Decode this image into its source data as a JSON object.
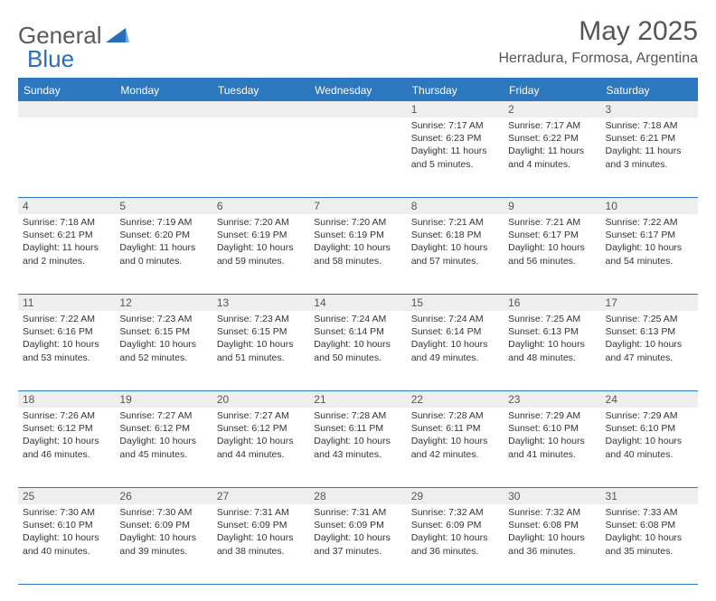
{
  "brand": {
    "part1": "General",
    "part2": "Blue"
  },
  "title": "May 2025",
  "location": "Herradura, Formosa, Argentina",
  "colors": {
    "accent": "#2c77bd",
    "daynum_bg": "#eeeeee",
    "text": "#333333",
    "header_text": "#555555"
  },
  "days_of_week": [
    "Sunday",
    "Monday",
    "Tuesday",
    "Wednesday",
    "Thursday",
    "Friday",
    "Saturday"
  ],
  "weeks": [
    [
      null,
      null,
      null,
      null,
      {
        "n": "1",
        "sr": "7:17 AM",
        "ss": "6:23 PM",
        "dl": "11 hours and 5 minutes."
      },
      {
        "n": "2",
        "sr": "7:17 AM",
        "ss": "6:22 PM",
        "dl": "11 hours and 4 minutes."
      },
      {
        "n": "3",
        "sr": "7:18 AM",
        "ss": "6:21 PM",
        "dl": "11 hours and 3 minutes."
      }
    ],
    [
      {
        "n": "4",
        "sr": "7:18 AM",
        "ss": "6:21 PM",
        "dl": "11 hours and 2 minutes."
      },
      {
        "n": "5",
        "sr": "7:19 AM",
        "ss": "6:20 PM",
        "dl": "11 hours and 0 minutes."
      },
      {
        "n": "6",
        "sr": "7:20 AM",
        "ss": "6:19 PM",
        "dl": "10 hours and 59 minutes."
      },
      {
        "n": "7",
        "sr": "7:20 AM",
        "ss": "6:19 PM",
        "dl": "10 hours and 58 minutes."
      },
      {
        "n": "8",
        "sr": "7:21 AM",
        "ss": "6:18 PM",
        "dl": "10 hours and 57 minutes."
      },
      {
        "n": "9",
        "sr": "7:21 AM",
        "ss": "6:17 PM",
        "dl": "10 hours and 56 minutes."
      },
      {
        "n": "10",
        "sr": "7:22 AM",
        "ss": "6:17 PM",
        "dl": "10 hours and 54 minutes."
      }
    ],
    [
      {
        "n": "11",
        "sr": "7:22 AM",
        "ss": "6:16 PM",
        "dl": "10 hours and 53 minutes."
      },
      {
        "n": "12",
        "sr": "7:23 AM",
        "ss": "6:15 PM",
        "dl": "10 hours and 52 minutes."
      },
      {
        "n": "13",
        "sr": "7:23 AM",
        "ss": "6:15 PM",
        "dl": "10 hours and 51 minutes."
      },
      {
        "n": "14",
        "sr": "7:24 AM",
        "ss": "6:14 PM",
        "dl": "10 hours and 50 minutes."
      },
      {
        "n": "15",
        "sr": "7:24 AM",
        "ss": "6:14 PM",
        "dl": "10 hours and 49 minutes."
      },
      {
        "n": "16",
        "sr": "7:25 AM",
        "ss": "6:13 PM",
        "dl": "10 hours and 48 minutes."
      },
      {
        "n": "17",
        "sr": "7:25 AM",
        "ss": "6:13 PM",
        "dl": "10 hours and 47 minutes."
      }
    ],
    [
      {
        "n": "18",
        "sr": "7:26 AM",
        "ss": "6:12 PM",
        "dl": "10 hours and 46 minutes."
      },
      {
        "n": "19",
        "sr": "7:27 AM",
        "ss": "6:12 PM",
        "dl": "10 hours and 45 minutes."
      },
      {
        "n": "20",
        "sr": "7:27 AM",
        "ss": "6:12 PM",
        "dl": "10 hours and 44 minutes."
      },
      {
        "n": "21",
        "sr": "7:28 AM",
        "ss": "6:11 PM",
        "dl": "10 hours and 43 minutes."
      },
      {
        "n": "22",
        "sr": "7:28 AM",
        "ss": "6:11 PM",
        "dl": "10 hours and 42 minutes."
      },
      {
        "n": "23",
        "sr": "7:29 AM",
        "ss": "6:10 PM",
        "dl": "10 hours and 41 minutes."
      },
      {
        "n": "24",
        "sr": "7:29 AM",
        "ss": "6:10 PM",
        "dl": "10 hours and 40 minutes."
      }
    ],
    [
      {
        "n": "25",
        "sr": "7:30 AM",
        "ss": "6:10 PM",
        "dl": "10 hours and 40 minutes."
      },
      {
        "n": "26",
        "sr": "7:30 AM",
        "ss": "6:09 PM",
        "dl": "10 hours and 39 minutes."
      },
      {
        "n": "27",
        "sr": "7:31 AM",
        "ss": "6:09 PM",
        "dl": "10 hours and 38 minutes."
      },
      {
        "n": "28",
        "sr": "7:31 AM",
        "ss": "6:09 PM",
        "dl": "10 hours and 37 minutes."
      },
      {
        "n": "29",
        "sr": "7:32 AM",
        "ss": "6:09 PM",
        "dl": "10 hours and 36 minutes."
      },
      {
        "n": "30",
        "sr": "7:32 AM",
        "ss": "6:08 PM",
        "dl": "10 hours and 36 minutes."
      },
      {
        "n": "31",
        "sr": "7:33 AM",
        "ss": "6:08 PM",
        "dl": "10 hours and 35 minutes."
      }
    ]
  ],
  "labels": {
    "sunrise": "Sunrise:",
    "sunset": "Sunset:",
    "daylight": "Daylight:"
  }
}
